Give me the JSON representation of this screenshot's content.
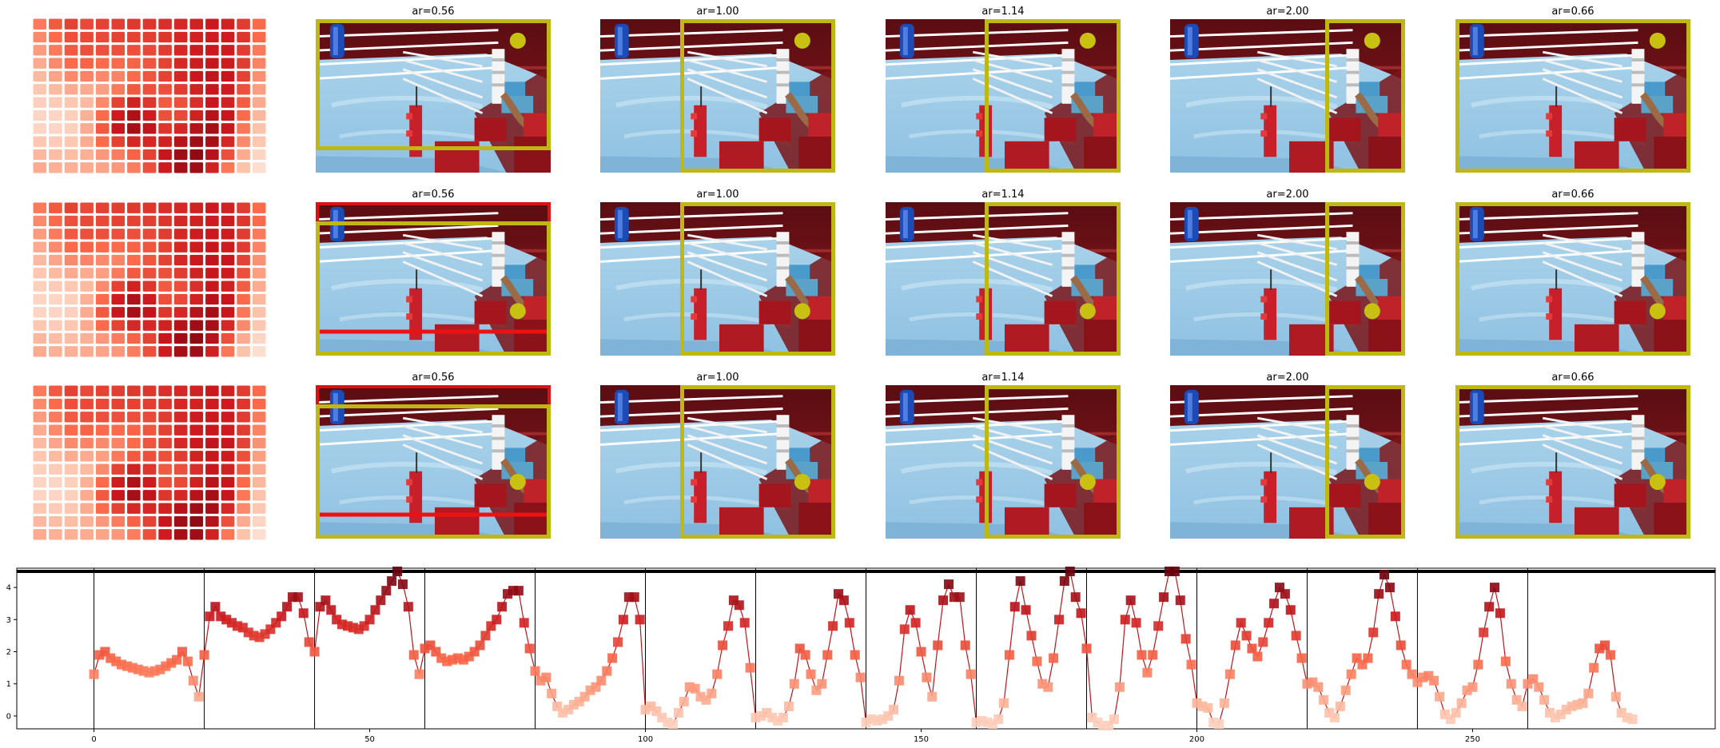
{
  "figure": {
    "rows": [
      {
        "panels": [
          {
            "title": "ar=0.56"
          },
          {
            "title": "ar=1.00"
          },
          {
            "title": "ar=1.14"
          },
          {
            "title": "ar=2.00"
          },
          {
            "title": "ar=0.66"
          }
        ]
      },
      {
        "panels": [
          {
            "title": "ar=0.56"
          },
          {
            "title": "ar=1.00"
          },
          {
            "title": "ar=1.14"
          },
          {
            "title": "ar=2.00"
          },
          {
            "title": "ar=0.66"
          }
        ]
      },
      {
        "panels": [
          {
            "title": "ar=0.56"
          },
          {
            "title": "ar=1.00"
          },
          {
            "title": "ar=1.14"
          },
          {
            "title": "ar=2.00"
          },
          {
            "title": "ar=0.66"
          }
        ]
      }
    ],
    "heatmap": {
      "cmap": "Reds",
      "grid": [
        [
          0.45,
          0.55,
          0.62,
          0.6,
          0.62,
          0.63,
          0.65,
          0.66,
          0.68,
          0.7,
          0.72,
          0.75,
          0.72,
          0.64,
          0.5
        ],
        [
          0.4,
          0.5,
          0.58,
          0.6,
          0.6,
          0.62,
          0.62,
          0.63,
          0.66,
          0.7,
          0.72,
          0.74,
          0.74,
          0.66,
          0.5
        ],
        [
          0.35,
          0.45,
          0.55,
          0.58,
          0.58,
          0.58,
          0.58,
          0.6,
          0.64,
          0.7,
          0.74,
          0.75,
          0.74,
          0.64,
          0.45
        ],
        [
          0.3,
          0.4,
          0.5,
          0.52,
          0.5,
          0.5,
          0.52,
          0.56,
          0.62,
          0.7,
          0.74,
          0.76,
          0.74,
          0.64,
          0.42
        ],
        [
          0.25,
          0.32,
          0.4,
          0.42,
          0.4,
          0.42,
          0.5,
          0.56,
          0.62,
          0.7,
          0.75,
          0.78,
          0.76,
          0.62,
          0.38
        ],
        [
          0.2,
          0.25,
          0.3,
          0.3,
          0.34,
          0.45,
          0.55,
          0.58,
          0.58,
          0.64,
          0.72,
          0.76,
          0.74,
          0.58,
          0.34
        ],
        [
          0.16,
          0.18,
          0.2,
          0.25,
          0.4,
          0.62,
          0.72,
          0.66,
          0.55,
          0.58,
          0.68,
          0.76,
          0.72,
          0.54,
          0.3
        ],
        [
          0.14,
          0.14,
          0.16,
          0.28,
          0.5,
          0.74,
          0.82,
          0.74,
          0.58,
          0.6,
          0.72,
          0.8,
          0.76,
          0.5,
          0.26
        ],
        [
          0.14,
          0.14,
          0.16,
          0.3,
          0.55,
          0.76,
          0.84,
          0.78,
          0.66,
          0.7,
          0.8,
          0.84,
          0.76,
          0.46,
          0.22
        ],
        [
          0.2,
          0.18,
          0.2,
          0.3,
          0.5,
          0.62,
          0.7,
          0.7,
          0.72,
          0.8,
          0.86,
          0.84,
          0.7,
          0.4,
          0.2
        ],
        [
          0.26,
          0.24,
          0.24,
          0.28,
          0.36,
          0.44,
          0.52,
          0.62,
          0.76,
          0.86,
          0.9,
          0.8,
          0.58,
          0.3,
          0.14
        ],
        [
          0.3,
          0.28,
          0.28,
          0.3,
          0.32,
          0.36,
          0.44,
          0.58,
          0.74,
          0.84,
          0.86,
          0.72,
          0.46,
          0.22,
          0.1
        ]
      ]
    }
  },
  "chart_data": {
    "type": "line",
    "title": "",
    "xlabel": "",
    "ylabel": "",
    "xlim": [
      -14,
      294
    ],
    "ylim": [
      -0.4,
      4.6
    ],
    "xticks": [
      0,
      50,
      100,
      150,
      200,
      250
    ],
    "yticks": [
      0,
      1,
      2,
      3,
      4
    ],
    "grid": false,
    "legend": "none",
    "segment_boundaries": [
      0,
      20,
      40,
      60,
      80,
      100,
      120,
      140,
      160,
      180,
      200,
      220,
      240,
      260
    ],
    "threshold_line": 4.5,
    "series": [
      {
        "x": [
          0,
          1,
          2,
          3,
          4,
          5,
          6,
          7,
          8,
          9,
          10,
          11,
          12,
          13,
          14,
          15,
          16,
          17,
          18,
          19,
          20,
          21,
          22,
          23,
          24,
          25,
          26,
          27,
          28,
          29,
          30,
          31,
          32,
          33,
          34,
          35,
          36,
          37,
          38,
          39,
          40,
          41,
          42,
          43,
          44,
          45,
          46,
          47,
          48,
          49,
          50,
          51,
          52,
          53,
          54,
          55,
          56,
          57,
          58,
          59,
          60,
          61,
          62,
          63,
          64,
          65,
          66,
          67,
          68,
          69,
          70,
          71,
          72,
          73,
          74,
          75,
          76,
          77,
          78,
          79,
          80,
          81,
          82,
          83,
          84,
          85,
          86,
          87,
          88,
          89,
          90,
          91,
          92,
          93,
          94,
          95,
          96,
          97,
          98,
          99,
          100,
          101,
          102,
          103,
          104,
          105,
          106,
          107,
          108,
          109,
          110,
          111,
          112,
          113,
          114,
          115,
          116,
          117,
          118,
          119,
          120,
          121,
          122,
          123,
          124,
          125,
          126,
          127,
          128,
          129,
          130,
          131,
          132,
          133,
          134,
          135,
          136,
          137,
          138,
          139,
          140,
          141,
          142,
          143,
          144,
          145,
          146,
          147,
          148,
          149,
          150,
          151,
          152,
          153,
          154,
          155,
          156,
          157,
          158,
          159,
          160,
          161,
          162,
          163,
          164,
          165,
          166,
          167,
          168,
          169,
          170,
          171,
          172,
          173,
          174,
          175,
          176,
          177,
          178,
          179,
          180,
          181,
          182,
          183,
          184,
          185,
          186,
          187,
          188,
          189,
          190,
          191,
          192,
          193,
          194,
          195,
          196,
          197,
          198,
          199,
          200,
          201,
          202,
          203,
          204,
          205,
          206,
          207,
          208,
          209,
          210,
          211,
          212,
          213,
          214,
          215,
          216,
          217,
          218,
          219,
          220,
          221,
          222,
          223,
          224,
          225,
          226,
          227,
          228,
          229,
          230,
          231,
          232,
          233,
          234,
          235,
          236,
          237,
          238,
          239,
          240,
          241,
          242,
          243,
          244,
          245,
          246,
          247,
          248,
          249,
          250,
          251,
          252,
          253,
          254,
          255,
          256,
          257,
          258,
          259,
          260,
          261,
          262,
          263,
          264,
          265,
          266,
          267,
          268,
          269,
          270,
          271,
          272,
          273,
          274,
          275,
          276,
          277,
          278,
          279
        ],
        "y": [
          1.3,
          1.9,
          2.0,
          1.8,
          1.7,
          1.6,
          1.55,
          1.5,
          1.45,
          1.4,
          1.35,
          1.4,
          1.45,
          1.55,
          1.65,
          1.75,
          2.0,
          1.7,
          1.1,
          0.6,
          1.9,
          3.1,
          3.4,
          3.1,
          3.0,
          2.9,
          2.8,
          2.75,
          2.6,
          2.5,
          2.45,
          2.55,
          2.7,
          2.9,
          3.1,
          3.4,
          3.7,
          3.7,
          3.2,
          2.3,
          2.0,
          3.4,
          3.6,
          3.3,
          3.0,
          2.85,
          2.8,
          2.75,
          2.7,
          2.8,
          3.0,
          3.3,
          3.6,
          3.9,
          4.2,
          4.5,
          4.1,
          3.4,
          1.9,
          1.3,
          2.1,
          2.2,
          2.0,
          1.8,
          1.7,
          1.75,
          1.8,
          1.75,
          1.85,
          2.0,
          2.2,
          2.5,
          2.8,
          3.0,
          3.4,
          3.8,
          3.9,
          3.9,
          2.9,
          2.1,
          1.4,
          1.1,
          1.2,
          0.7,
          0.3,
          0.1,
          0.2,
          0.35,
          0.45,
          0.6,
          0.8,
          0.9,
          1.1,
          1.4,
          1.8,
          2.3,
          3.0,
          3.7,
          3.7,
          3.0,
          0.2,
          0.3,
          0.15,
          -0.05,
          -0.2,
          -0.25,
          0.1,
          0.45,
          0.9,
          0.85,
          0.6,
          0.5,
          0.7,
          1.3,
          2.2,
          2.8,
          3.6,
          3.45,
          2.9,
          1.5,
          -0.05,
          0.0,
          0.1,
          -0.05,
          -0.15,
          -0.05,
          0.3,
          1.0,
          2.1,
          1.9,
          1.3,
          0.8,
          1.0,
          1.9,
          2.8,
          3.8,
          3.6,
          2.9,
          1.9,
          1.2,
          -0.2,
          -0.1,
          -0.15,
          -0.1,
          0.0,
          0.2,
          1.1,
          2.7,
          3.3,
          2.9,
          2.0,
          1.2,
          0.6,
          2.2,
          3.6,
          4.1,
          3.7,
          3.7,
          2.2,
          1.3,
          -0.2,
          -0.15,
          -0.2,
          -0.25,
          -0.1,
          0.4,
          1.9,
          3.4,
          4.2,
          3.3,
          2.5,
          1.7,
          1.0,
          0.9,
          1.8,
          3.0,
          4.2,
          4.5,
          3.7,
          3.2,
          2.1,
          -0.05,
          -0.2,
          -0.3,
          -0.3,
          -0.1,
          0.9,
          3.0,
          3.6,
          2.9,
          1.9,
          1.35,
          1.9,
          2.8,
          3.7,
          4.5,
          4.5,
          3.6,
          2.4,
          1.6,
          0.4,
          0.3,
          0.25,
          -0.2,
          -0.25,
          0.4,
          1.3,
          2.2,
          2.9,
          2.5,
          2.1,
          1.85,
          2.3,
          2.9,
          3.5,
          4.0,
          3.8,
          3.3,
          2.5,
          1.8,
          1.0,
          1.05,
          0.9,
          0.5,
          0.1,
          -0.05,
          0.3,
          0.8,
          1.3,
          1.8,
          1.6,
          1.8,
          2.6,
          3.8,
          4.4,
          4.0,
          3.1,
          2.2,
          1.6,
          1.3,
          1.05,
          1.2,
          1.25,
          1.1,
          0.6,
          0.05,
          -0.1,
          0.1,
          0.4,
          0.8,
          0.9,
          1.6,
          2.6,
          3.4,
          4.0,
          3.2,
          1.7,
          1.0,
          0.5,
          0.3,
          1.0,
          1.15,
          0.9,
          0.5,
          0.1,
          -0.05,
          0.05,
          0.2,
          0.3,
          0.35,
          0.4,
          0.7,
          1.5,
          2.1,
          2.2,
          1.9,
          0.6,
          0.1,
          -0.05,
          -0.1
        ]
      }
    ]
  }
}
